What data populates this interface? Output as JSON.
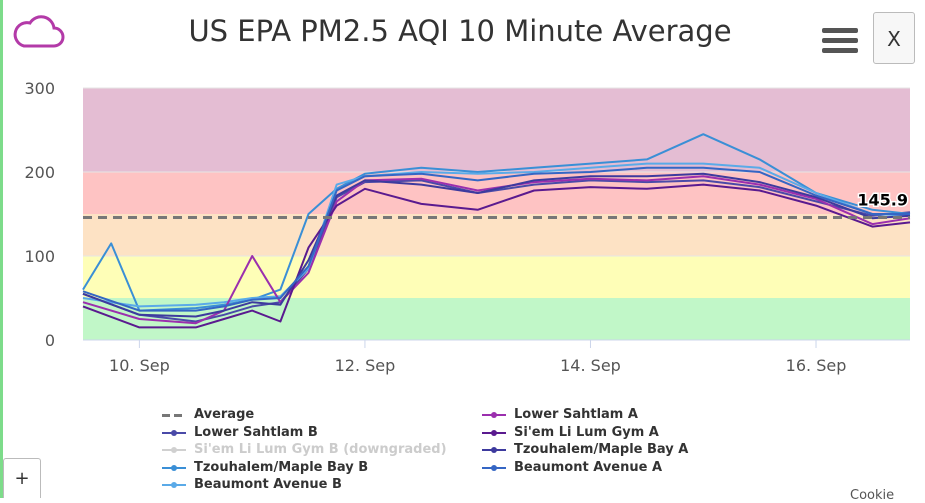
{
  "app": {
    "menu_icon": "hamburger-menu-icon",
    "cloud_icon": "cloud-icon",
    "close_label": "X",
    "plus_label": "+",
    "corner_text": "Cookie"
  },
  "chart_data": {
    "type": "line",
    "title": "US EPA PM2.5 AQI 10 Minute Average",
    "xlabel": "",
    "ylabel": "",
    "ylim": [
      0,
      300
    ],
    "xlim": [
      "2020-09-09T12:00",
      "2020-09-16T20:00"
    ],
    "x_ticks": [
      "10. Sep",
      "12. Sep",
      "14. Sep",
      "16. Sep"
    ],
    "y_ticks": [
      0,
      100,
      200,
      300
    ],
    "grid": true,
    "legend_position": "bottom",
    "aqi_bands": [
      {
        "from": 0,
        "to": 50,
        "color": "#c1f7c8"
      },
      {
        "from": 50,
        "to": 100,
        "color": "#fefeb7"
      },
      {
        "from": 100,
        "to": 150,
        "color": "#fde2c4"
      },
      {
        "from": 150,
        "to": 200,
        "color": "#fec3c3"
      },
      {
        "from": 200,
        "to": 300,
        "color": "#e4bdd3"
      }
    ],
    "average": {
      "name": "Average",
      "value": 145.9,
      "label": "145.9",
      "color": "#777777"
    },
    "series": [
      {
        "name": "Lower Sahtlam B",
        "color": "#4a4aa8",
        "x": [
          "2020-09-09T12:00",
          "2020-09-10T00:00",
          "2020-09-10T12:00",
          "2020-09-10T18:00",
          "2020-09-11T00:00",
          "2020-09-11T06:00",
          "2020-09-11T12:00",
          "2020-09-11T18:00",
          "2020-09-12T00:00",
          "2020-09-12T12:00",
          "2020-09-13T00:00",
          "2020-09-13T12:00",
          "2020-09-14T00:00",
          "2020-09-14T12:00",
          "2020-09-15T00:00",
          "2020-09-15T12:00",
          "2020-09-16T00:00",
          "2020-09-16T12:00",
          "2020-09-16T20:00"
        ],
        "y": [
          55,
          30,
          22,
          30,
          40,
          45,
          85,
          170,
          188,
          190,
          175,
          185,
          190,
          188,
          190,
          182,
          165,
          148,
          152
        ]
      },
      {
        "name": "Si'em Li Lum Gym B (downgraded)",
        "color": "#d0d0d0",
        "downgraded": true,
        "x": [
          "2020-09-09T12:00",
          "2020-09-16T20:00"
        ],
        "y": [
          null,
          null
        ]
      },
      {
        "name": "Tzouhalem/Maple Bay B",
        "color": "#3a8fd6",
        "x": [
          "2020-09-09T12:00",
          "2020-09-09T18:00",
          "2020-09-10T00:00",
          "2020-09-10T12:00",
          "2020-09-10T18:00",
          "2020-09-11T00:00",
          "2020-09-11T06:00",
          "2020-09-11T12:00",
          "2020-09-11T18:00",
          "2020-09-12T00:00",
          "2020-09-12T12:00",
          "2020-09-13T00:00",
          "2020-09-13T12:00",
          "2020-09-14T00:00",
          "2020-09-14T12:00",
          "2020-09-15T00:00",
          "2020-09-15T12:00",
          "2020-09-16T00:00",
          "2020-09-16T06:00",
          "2020-09-16T12:00",
          "2020-09-16T20:00"
        ],
        "y": [
          60,
          115,
          35,
          38,
          42,
          48,
          60,
          150,
          180,
          198,
          205,
          200,
          205,
          210,
          215,
          245,
          215,
          175,
          165,
          155,
          150
        ]
      },
      {
        "name": "Beaumont Avenue B",
        "color": "#5aaae8",
        "x": [
          "2020-09-09T12:00",
          "2020-09-10T00:00",
          "2020-09-10T12:00",
          "2020-09-10T18:00",
          "2020-09-11T00:00",
          "2020-09-11T06:00",
          "2020-09-11T12:00",
          "2020-09-11T18:00",
          "2020-09-12T00:00",
          "2020-09-12T12:00",
          "2020-09-13T00:00",
          "2020-09-13T12:00",
          "2020-09-14T00:00",
          "2020-09-14T12:00",
          "2020-09-15T00:00",
          "2020-09-15T12:00",
          "2020-09-16T00:00",
          "2020-09-16T12:00",
          "2020-09-16T20:00"
        ],
        "y": [
          50,
          40,
          42,
          45,
          50,
          52,
          85,
          185,
          195,
          200,
          198,
          200,
          205,
          210,
          210,
          205,
          175,
          150,
          148
        ]
      },
      {
        "name": "Lower Sahtlam A",
        "color": "#9b2fae",
        "x": [
          "2020-09-09T12:00",
          "2020-09-10T00:00",
          "2020-09-10T12:00",
          "2020-09-10T18:00",
          "2020-09-11T00:00",
          "2020-09-11T06:00",
          "2020-09-11T12:00",
          "2020-09-11T18:00",
          "2020-09-12T00:00",
          "2020-09-12T12:00",
          "2020-09-13T00:00",
          "2020-09-13T12:00",
          "2020-09-14T00:00",
          "2020-09-14T12:00",
          "2020-09-15T00:00",
          "2020-09-15T12:00",
          "2020-09-16T00:00",
          "2020-09-16T12:00",
          "2020-09-16T20:00"
        ],
        "y": [
          45,
          25,
          20,
          35,
          100,
          45,
          80,
          165,
          190,
          192,
          178,
          188,
          192,
          190,
          195,
          185,
          168,
          138,
          145
        ]
      },
      {
        "name": "Si'em Li Lum Gym A",
        "color": "#5a1a8f",
        "x": [
          "2020-09-09T12:00",
          "2020-09-10T00:00",
          "2020-09-10T12:00",
          "2020-09-10T18:00",
          "2020-09-11T00:00",
          "2020-09-11T06:00",
          "2020-09-11T12:00",
          "2020-09-11T18:00",
          "2020-09-12T00:00",
          "2020-09-12T12:00",
          "2020-09-13T00:00",
          "2020-09-13T12:00",
          "2020-09-14T00:00",
          "2020-09-14T12:00",
          "2020-09-15T00:00",
          "2020-09-15T12:00",
          "2020-09-16T00:00",
          "2020-09-16T12:00",
          "2020-09-16T20:00"
        ],
        "y": [
          40,
          15,
          15,
          25,
          35,
          22,
          110,
          160,
          180,
          162,
          155,
          178,
          182,
          180,
          185,
          178,
          160,
          135,
          140
        ]
      },
      {
        "name": "Tzouhalem/Maple Bay A",
        "color": "#3d3a9e",
        "x": [
          "2020-09-09T12:00",
          "2020-09-10T00:00",
          "2020-09-10T12:00",
          "2020-09-10T18:00",
          "2020-09-11T00:00",
          "2020-09-11T06:00",
          "2020-09-11T12:00",
          "2020-09-11T18:00",
          "2020-09-12T00:00",
          "2020-09-12T12:00",
          "2020-09-13T00:00",
          "2020-09-13T12:00",
          "2020-09-14T00:00",
          "2020-09-14T12:00",
          "2020-09-15T00:00",
          "2020-09-15T12:00",
          "2020-09-16T00:00",
          "2020-09-16T12:00",
          "2020-09-16T20:00"
        ],
        "y": [
          55,
          30,
          28,
          35,
          45,
          42,
          95,
          172,
          190,
          185,
          175,
          190,
          195,
          195,
          198,
          188,
          170,
          145,
          148
        ]
      },
      {
        "name": "Beaumont Avenue A",
        "color": "#3566c4",
        "x": [
          "2020-09-09T12:00",
          "2020-09-10T00:00",
          "2020-09-10T12:00",
          "2020-09-10T18:00",
          "2020-09-11T00:00",
          "2020-09-11T06:00",
          "2020-09-11T12:00",
          "2020-09-11T18:00",
          "2020-09-12T00:00",
          "2020-09-12T12:00",
          "2020-09-13T00:00",
          "2020-09-13T12:00",
          "2020-09-14T00:00",
          "2020-09-14T12:00",
          "2020-09-15T00:00",
          "2020-09-15T12:00",
          "2020-09-16T00:00",
          "2020-09-16T12:00",
          "2020-09-16T20:00"
        ],
        "y": [
          58,
          35,
          35,
          40,
          48,
          50,
          88,
          178,
          195,
          198,
          190,
          198,
          200,
          205,
          205,
          200,
          172,
          150,
          150
        ]
      }
    ]
  }
}
